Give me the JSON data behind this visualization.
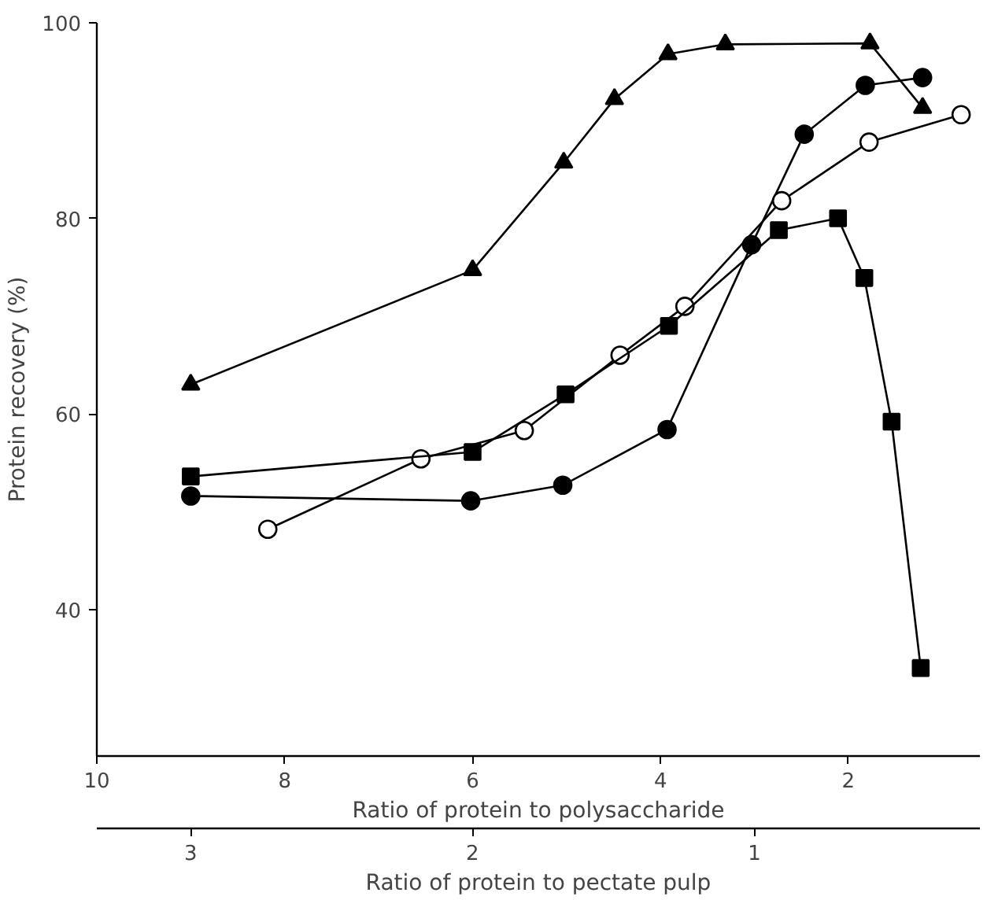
{
  "chart_data": {
    "type": "line",
    "xlabel": "Ratio of protein to polysaccharide",
    "ylabel": "Protein recovery (%)",
    "x2label": "Ratio of protein to pectate pulp",
    "xlim": [
      10,
      0.6
    ],
    "xticks": [
      10,
      8,
      6,
      4,
      2
    ],
    "x2lim": [
      3.333,
      0.2
    ],
    "x2ticks": [
      3,
      2,
      1
    ],
    "ylim": [
      25,
      100
    ],
    "yticks": [
      40,
      60,
      80,
      100
    ],
    "line_style": "solid",
    "series": [
      {
        "color": "#000000",
        "marker": "triangle",
        "x": [
          9.0,
          6.0,
          5.03,
          4.49,
          3.92,
          3.31,
          1.77,
          1.21
        ],
        "values": [
          63,
          74.7,
          85.7,
          92.2,
          96.8,
          97.8,
          97.9,
          91.3
        ]
      },
      {
        "color": "#000000",
        "marker": "circle",
        "x": [
          9.0,
          6.02,
          5.04,
          3.93,
          3.03,
          2.47,
          1.82,
          1.21
        ],
        "values": [
          51.6,
          51.1,
          52.7,
          58.4,
          77.3,
          88.6,
          93.6,
          94.4
        ]
      },
      {
        "color": "#000000",
        "marker": "circle",
        "colors": [
          "#ffffff",
          "#ffffff",
          "#ffffff",
          "#ffffff",
          "#ffffff",
          "#ffffff",
          "#ffffff",
          "#ffffff"
        ],
        "x": [
          8.18,
          6.55,
          5.45,
          4.43,
          3.74,
          2.71,
          1.78,
          0.8
        ],
        "values": [
          48.2,
          55.4,
          58.3,
          66,
          71,
          81.8,
          87.8,
          90.6
        ]
      },
      {
        "color": "#000000",
        "marker": "square",
        "x": [
          9.0,
          6.0,
          5.01,
          3.91,
          2.74,
          2.11,
          1.83,
          1.54,
          1.23
        ],
        "values": [
          53.6,
          56.1,
          62,
          69,
          78.8,
          80,
          73.9,
          59.2,
          34
        ]
      }
    ]
  }
}
